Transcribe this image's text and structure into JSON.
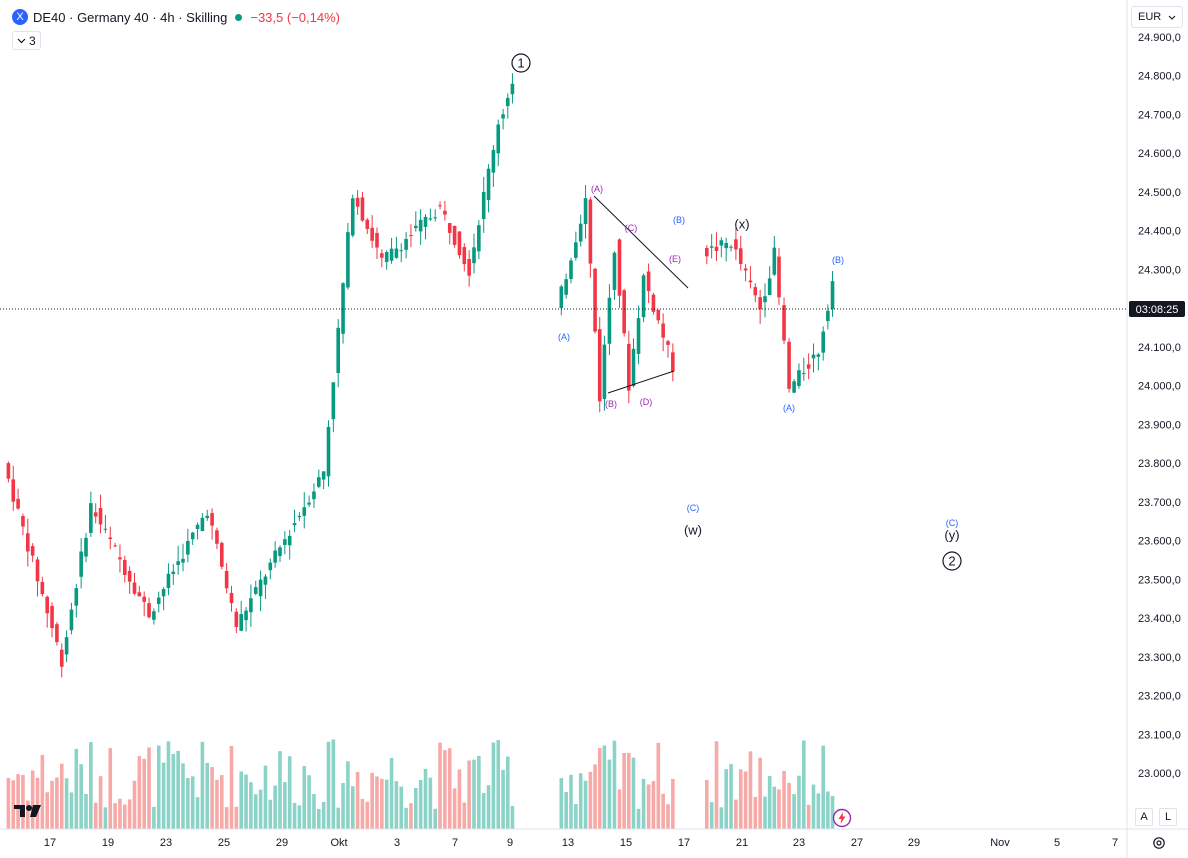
{
  "legend": {
    "symbol_badge": "X",
    "title": "DE40 · Germany 40 · 4h · Skilling",
    "change": "−33,5 (−0,14%)",
    "change_color": "#f23645",
    "status_color": "#089981"
  },
  "indicators_toggle": {
    "count": "3"
  },
  "currency": {
    "label": "EUR"
  },
  "price_axis": {
    "ticks": [
      "24.900,0",
      "24.800,0",
      "24.700,0",
      "24.600,0",
      "24.500,0",
      "24.400,0",
      "24.300,0",
      "24.100,0",
      "24.000,0",
      "23.900,0",
      "23.800,0",
      "23.700,0",
      "23.600,0",
      "23.500,0",
      "23.400,0",
      "23.300,0",
      "23.200,0",
      "23.100,0",
      "23.000,0"
    ],
    "current_label": "03:08:25"
  },
  "time_axis": {
    "ticks": [
      "17",
      "19",
      "23",
      "25",
      "29",
      "Okt",
      "3",
      "7",
      "9",
      "13",
      "15",
      "17",
      "21",
      "23",
      "27",
      "29",
      "Nov",
      "5",
      "7"
    ]
  },
  "scale_buttons": {
    "auto": "A",
    "log": "L"
  },
  "colors": {
    "up": "#089981",
    "down": "#f23645",
    "up_volume": "#8bd3c7",
    "down_volume": "#f7a9a7",
    "purple": "#9c27b0",
    "blue": "#2962ff"
  },
  "icons": [
    "logo-icon",
    "chevron-down-icon",
    "gear-icon",
    "flash-icon"
  ],
  "chart_data": {
    "type": "candlestick",
    "instrument": "DE40 · Germany 40",
    "interval": "4h",
    "broker": "Skilling",
    "currency": "EUR",
    "ylim": [
      22900,
      24930
    ],
    "current_price": 24200,
    "last_candle": {
      "open": 24270,
      "high": 24290,
      "low": 24160,
      "close": 24200
    },
    "swing_points": [
      {
        "date": "Sep 16",
        "price": 23800
      },
      {
        "date": "Sep 18",
        "price": 23290
      },
      {
        "date": "Sep 19",
        "price": 23690
      },
      {
        "date": "Sep 23",
        "price": 23410
      },
      {
        "date": "Sep 25",
        "price": 23680
      },
      {
        "date": "Sep 26",
        "price": 23380
      },
      {
        "date": "Okt 1",
        "price": 23780
      },
      {
        "date": "Okt 2",
        "price": 24500
      },
      {
        "date": "Okt 3",
        "price": 24320
      },
      {
        "date": "Okt 7",
        "price": 24460
      },
      {
        "date": "Okt 8",
        "price": 24300
      },
      {
        "date": "Okt 9",
        "price": 24680
      },
      {
        "date": "Okt 9",
        "price": 24770
      },
      {
        "date": "Okt 11",
        "price": 24520
      },
      {
        "date": "Okt 13",
        "price": 24190
      },
      {
        "date": "Okt 14",
        "price": 24480
      },
      {
        "date": "Okt 14",
        "price": 23970
      },
      {
        "date": "Okt 15",
        "price": 24360
      },
      {
        "date": "Okt 15",
        "price": 24000
      },
      {
        "date": "Okt 16",
        "price": 24280
      },
      {
        "date": "Okt 17",
        "price": 24050
      },
      {
        "date": "Okt 18",
        "price": 23690
      },
      {
        "date": "Okt 20",
        "price": 24340
      },
      {
        "date": "Okt 21",
        "price": 24370
      },
      {
        "date": "Okt 22",
        "price": 24200
      },
      {
        "date": "Okt 22",
        "price": 24340
      },
      {
        "date": "Okt 23",
        "price": 23990
      },
      {
        "date": "Okt 24",
        "price": 24090
      },
      {
        "date": "Okt 24",
        "price": 24270
      },
      {
        "date": "Okt 25",
        "price": 24200
      }
    ],
    "annotations": [
      {
        "label": "1",
        "circled": true,
        "price": 24850,
        "date": "Okt 9"
      },
      {
        "label": "(A)",
        "price": 24150,
        "date": "Okt 13"
      },
      {
        "label": "(A)",
        "price": 24500,
        "date": "Okt 14"
      },
      {
        "label": "(B)",
        "price": 23950,
        "date": "Okt 14"
      },
      {
        "label": "(C)",
        "price": 24380,
        "date": "Okt 15"
      },
      {
        "label": "(D)",
        "price": 23960,
        "date": "Okt 16"
      },
      {
        "label": "(E)",
        "price": 24300,
        "date": "Okt 16"
      },
      {
        "label": "(B)",
        "price": 24420,
        "date": "Okt 16"
      },
      {
        "label": "(C)",
        "price": 23690,
        "date": "Okt 17"
      },
      {
        "label": "(w)",
        "price": 23650,
        "date": "Okt 17"
      },
      {
        "label": "(x)",
        "price": 24410,
        "date": "Okt 20"
      },
      {
        "label": "(A)",
        "price": 23960,
        "date": "Okt 22"
      },
      {
        "label": "(B)",
        "price": 24320,
        "date": "Okt 24"
      },
      {
        "label": "(C)",
        "price": 23640,
        "date": "Okt 29"
      },
      {
        "label": "(y)",
        "price": 23610,
        "date": "Okt 29"
      },
      {
        "label": "2",
        "circled": true,
        "price": 23550,
        "date": "Okt 29"
      }
    ],
    "triangle_lines": [
      {
        "from": {
          "date": "Okt 14",
          "price": 24480
        },
        "to": {
          "date": "Okt 17",
          "price": 24230
        }
      },
      {
        "from": {
          "date": "Okt 14",
          "price": 23970
        },
        "to": {
          "date": "Okt 16",
          "price": 24030
        }
      }
    ],
    "grid": false,
    "volume_pane": true
  }
}
